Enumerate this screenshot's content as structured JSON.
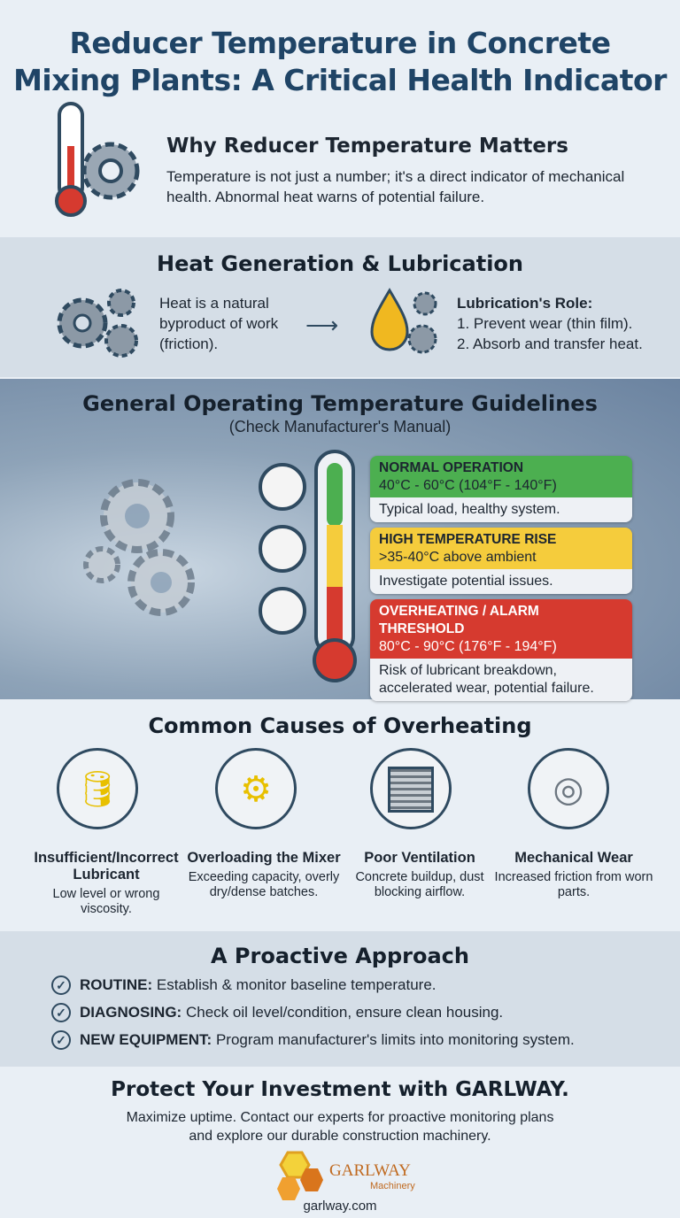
{
  "title": [
    "Reducer Temperature in Concrete",
    "Mixing Plants: A Critical Health Indicator"
  ],
  "why": {
    "heading": "Why Reducer Temperature Matters",
    "text": "Temperature is not just a number; it's a direct indicator of mechanical health. Abnormal heat warns of potential failure.",
    "icon": "thermometer-gear-icon"
  },
  "heat": {
    "heading": "Heat Generation & Lubrication",
    "left_text": "Heat is a natural byproduct of work (friction).",
    "role_title": "Lubrication's Role:",
    "roles": [
      "1. Prevent wear (thin film).",
      "2. Absorb and transfer heat."
    ]
  },
  "guidelines": {
    "heading": "General Operating Temperature Guidelines",
    "subheading": "(Check Manufacturer's Manual)",
    "levels": [
      {
        "title": "NORMAL OPERATION",
        "range": "40°C - 60°C (104°F - 140°F)",
        "desc": "Typical load, healthy system.",
        "color": "#4caf50"
      },
      {
        "title": "HIGH TEMPERATURE RISE",
        "range": ">35-40°C above ambient",
        "desc": "Investigate potential issues.",
        "color": "#f5cc3c"
      },
      {
        "title": "OVERHEATING / ALARM THRESHOLD",
        "range": "80°C - 90°C (176°F - 194°F)",
        "desc": "Risk of lubricant breakdown, accelerated wear, potential failure.",
        "color": "#d63a2f"
      }
    ]
  },
  "causes": {
    "heading": "Common Causes of Overheating",
    "items": [
      {
        "title": "Insufficient/Incorrect Lubricant",
        "desc": "Low level or wrong viscosity.",
        "icon": "oil-can-icon"
      },
      {
        "title": "Overloading the Mixer",
        "desc": "Exceeding capacity, overly dry/dense batches.",
        "icon": "concrete-mixer-icon"
      },
      {
        "title": "Poor Ventilation",
        "desc": "Concrete buildup, dust blocking airflow.",
        "icon": "vent-icon"
      },
      {
        "title": "Mechanical Wear",
        "desc": "Increased friction from worn parts.",
        "icon": "bearing-icon"
      }
    ]
  },
  "approach": {
    "heading": "A Proactive Approach",
    "items": [
      {
        "label": "ROUTINE:",
        "text": "Establish & monitor baseline temperature."
      },
      {
        "label": "DIAGNOSING:",
        "text": "Check oil level/condition, ensure clean housing."
      },
      {
        "label": "NEW EQUIPMENT:",
        "text": "Program manufacturer's limits into monitoring system."
      }
    ]
  },
  "footer": {
    "heading": "Protect Your Investment with GARLWAY.",
    "lines": [
      "Maximize uptime. Contact our experts for proactive monitoring plans",
      "and explore our durable construction machinery."
    ],
    "logo_name": "GARLWAY",
    "logo_sub": "Machinery",
    "url": "garlway.com"
  }
}
